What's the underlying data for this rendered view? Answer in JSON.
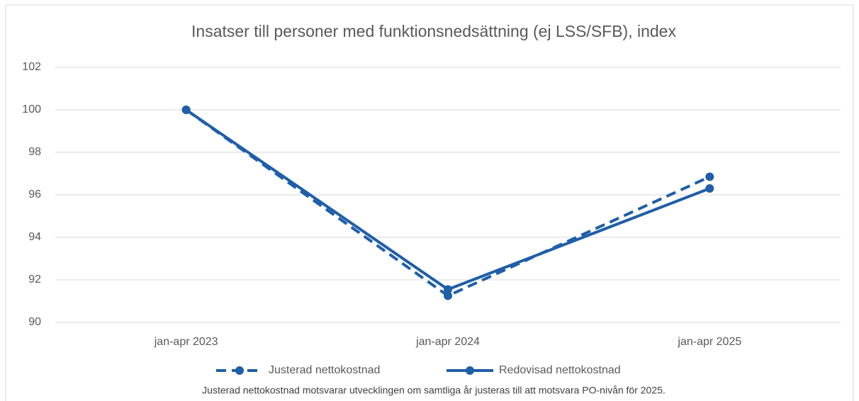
{
  "chart_data": {
    "type": "line",
    "title": "Insatser till personer med funktionsnedsättning (ej LSS/SFB), index",
    "categories": [
      "jan-apr 2023",
      "jan-apr 2024",
      "jan-apr 2025"
    ],
    "series": [
      {
        "name": "Justerad nettokostnad",
        "color": "#1f5ea8",
        "style": "dashed",
        "values": [
          100,
          91.25,
          96.85
        ]
      },
      {
        "name": "Redovisad nettokostnad",
        "color": "#1f5ea8",
        "style": "solid",
        "values": [
          100,
          91.55,
          96.3
        ]
      }
    ],
    "ylim": [
      90,
      102
    ],
    "yticks": [
      90,
      92,
      94,
      96,
      98,
      100,
      102
    ],
    "grid": true,
    "legend": "bottom",
    "note": "Justerad nettokostnad motsvarar utvecklingen om samtliga år justeras till att motsvara PO-nivån för 2025."
  }
}
